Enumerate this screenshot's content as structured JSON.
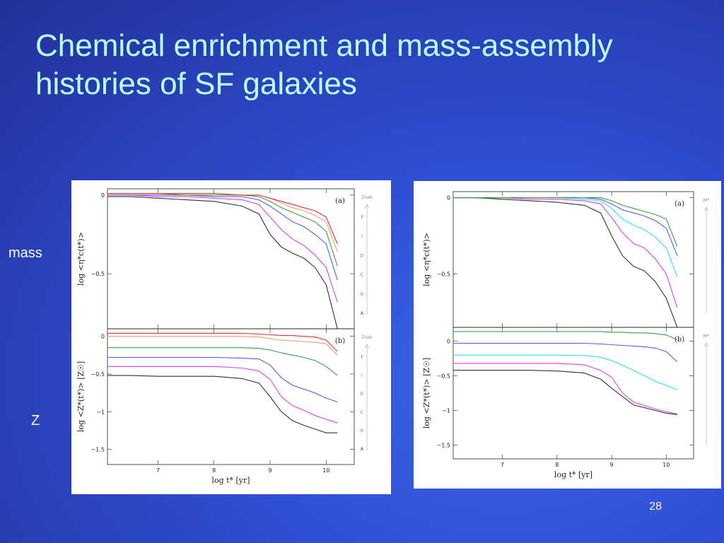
{
  "slide": {
    "title": "Chemical enrichment and mass-assembly histories of SF galaxies",
    "row_label_top": "mass",
    "row_label_bottom": "Z",
    "page_number": "28"
  },
  "chart_data": [
    {
      "type": "line",
      "panel": "left-top",
      "tag": "(a)",
      "ylabel": "log <η*c(t*)>",
      "ylim": [
        -0.85,
        0.04
      ],
      "xlim": [
        6.1,
        10.5
      ],
      "yticks": [
        0,
        -0.5
      ],
      "ytick_labels": [
        "0",
        "−0.5"
      ],
      "legend_title": "Zneb",
      "legend_labels": [
        "F",
        "E",
        "D",
        "C",
        "B",
        "A"
      ],
      "x": [
        6.1,
        6.5,
        7.0,
        7.5,
        8.0,
        8.5,
        8.8,
        9.0,
        9.2,
        9.4,
        9.6,
        9.8,
        10.0,
        10.2
      ],
      "series": [
        {
          "label": "A",
          "color": "#333333",
          "values": [
            -0.01,
            -0.01,
            -0.02,
            -0.03,
            -0.04,
            -0.07,
            -0.12,
            -0.25,
            -0.33,
            -0.37,
            -0.4,
            -0.46,
            -0.57,
            -0.85
          ]
        },
        {
          "label": "B",
          "color": "#e040e0",
          "values": [
            0.0,
            0.0,
            -0.01,
            -0.01,
            -0.02,
            -0.03,
            -0.06,
            -0.14,
            -0.22,
            -0.28,
            -0.32,
            -0.38,
            -0.46,
            -0.68
          ]
        },
        {
          "label": "C",
          "color": "#5060e0",
          "values": [
            0.0,
            0.0,
            0.0,
            0.0,
            -0.01,
            -0.01,
            -0.03,
            -0.07,
            -0.12,
            -0.17,
            -0.2,
            -0.25,
            -0.31,
            -0.54
          ]
        },
        {
          "label": "D",
          "color": "#3aa040",
          "values": [
            0.01,
            0.01,
            0.01,
            0.0,
            0.0,
            0.0,
            -0.01,
            -0.04,
            -0.08,
            -0.11,
            -0.14,
            -0.17,
            -0.23,
            -0.45
          ]
        },
        {
          "label": "E",
          "color": "#f0a070",
          "values": [
            0.01,
            0.01,
            0.01,
            0.01,
            0.01,
            0.0,
            0.0,
            -0.02,
            -0.05,
            -0.08,
            -0.1,
            -0.13,
            -0.17,
            -0.36
          ]
        },
        {
          "label": "F",
          "color": "#e83030",
          "values": [
            0.01,
            0.01,
            0.01,
            0.01,
            0.01,
            0.0,
            0.0,
            -0.02,
            -0.04,
            -0.06,
            -0.08,
            -0.1,
            -0.14,
            -0.31
          ]
        }
      ]
    },
    {
      "type": "line",
      "panel": "left-bottom",
      "tag": "(b)",
      "ylabel": "log <Z*(t*)> [Z☉]",
      "xlabel": "log t* [yr]",
      "ylim": [
        -1.7,
        0.1
      ],
      "xlim": [
        6.1,
        10.5
      ],
      "yticks": [
        0,
        -0.5,
        -1,
        -1.5
      ],
      "ytick_labels": [
        "0",
        "−0.5",
        "−1",
        "−1.5"
      ],
      "xticks": [
        7,
        8,
        9,
        10
      ],
      "xtick_labels": [
        "7",
        "8",
        "9",
        "10"
      ],
      "legend_title": "Zneb",
      "legend_labels": [
        "F",
        "E",
        "D",
        "C",
        "B",
        "A"
      ],
      "x": [
        6.1,
        6.5,
        7.0,
        7.5,
        8.0,
        8.5,
        8.8,
        9.0,
        9.2,
        9.4,
        9.6,
        9.8,
        10.0,
        10.2
      ],
      "series": [
        {
          "label": "A",
          "color": "#333333",
          "values": [
            -0.52,
            -0.52,
            -0.53,
            -0.53,
            -0.53,
            -0.56,
            -0.62,
            -0.8,
            -1.0,
            -1.12,
            -1.18,
            -1.23,
            -1.28,
            -1.28
          ]
        },
        {
          "label": "B",
          "color": "#e040e0",
          "values": [
            -0.4,
            -0.4,
            -0.4,
            -0.4,
            -0.4,
            -0.42,
            -0.46,
            -0.57,
            -0.8,
            -0.92,
            -0.98,
            -1.05,
            -1.1,
            -1.15
          ]
        },
        {
          "label": "C",
          "color": "#5060e0",
          "values": [
            -0.28,
            -0.28,
            -0.28,
            -0.28,
            -0.28,
            -0.29,
            -0.3,
            -0.38,
            -0.55,
            -0.65,
            -0.7,
            -0.75,
            -0.82,
            -0.87
          ]
        },
        {
          "label": "D",
          "color": "#3aa040",
          "values": [
            -0.15,
            -0.15,
            -0.15,
            -0.15,
            -0.15,
            -0.15,
            -0.16,
            -0.18,
            -0.22,
            -0.25,
            -0.28,
            -0.32,
            -0.4,
            -0.52
          ]
        },
        {
          "label": "E",
          "color": "#f0a070",
          "values": [
            0.0,
            0.0,
            0.0,
            0.0,
            0.0,
            0.0,
            -0.01,
            -0.03,
            -0.05,
            -0.06,
            -0.07,
            -0.08,
            -0.1,
            -0.25
          ]
        },
        {
          "label": "F",
          "color": "#e83030",
          "values": [
            0.04,
            0.04,
            0.04,
            0.04,
            0.04,
            0.04,
            0.03,
            0.02,
            0.01,
            0.01,
            0.0,
            -0.01,
            -0.05,
            -0.2
          ]
        }
      ]
    },
    {
      "type": "line",
      "panel": "right-top",
      "tag": "(a)",
      "ylabel": "log <η*c(t*)>",
      "ylim": [
        -0.85,
        0.04
      ],
      "xlim": [
        6.1,
        10.5
      ],
      "yticks": [
        0,
        -0.5
      ],
      "ytick_labels": [
        "0",
        "−0.5"
      ],
      "legend_title": "M*",
      "legend_labels": [],
      "x": [
        6.1,
        6.5,
        7.0,
        7.5,
        8.0,
        8.5,
        8.8,
        9.0,
        9.2,
        9.4,
        9.6,
        9.8,
        10.0,
        10.2
      ],
      "series": [
        {
          "color": "#333333",
          "values": [
            0.0,
            0.0,
            -0.01,
            -0.02,
            -0.03,
            -0.05,
            -0.1,
            -0.25,
            -0.38,
            -0.45,
            -0.48,
            -0.55,
            -0.66,
            -0.85
          ]
        },
        {
          "color": "#e040e0",
          "values": [
            0.0,
            0.0,
            0.0,
            -0.01,
            -0.01,
            -0.02,
            -0.04,
            -0.13,
            -0.23,
            -0.3,
            -0.33,
            -0.4,
            -0.5,
            -0.72
          ]
        },
        {
          "color": "#30e0f0",
          "values": [
            0.0,
            0.0,
            0.0,
            0.0,
            0.0,
            -0.01,
            -0.02,
            -0.07,
            -0.14,
            -0.18,
            -0.21,
            -0.26,
            -0.33,
            -0.52
          ]
        },
        {
          "color": "#5060e0",
          "values": [
            0.0,
            0.0,
            0.0,
            0.0,
            0.0,
            0.0,
            -0.01,
            -0.04,
            -0.08,
            -0.1,
            -0.12,
            -0.15,
            -0.2,
            -0.38
          ]
        },
        {
          "color": "#3aa040",
          "values": [
            0.0,
            0.0,
            0.0,
            0.0,
            0.0,
            0.0,
            0.0,
            -0.02,
            -0.05,
            -0.07,
            -0.09,
            -0.11,
            -0.14,
            -0.32
          ]
        }
      ]
    },
    {
      "type": "line",
      "panel": "right-bottom",
      "tag": "(b)",
      "ylabel": "log <Z*(t*)> [Z☉]",
      "xlabel": "log t* [yr]",
      "ylim": [
        -1.7,
        0.2
      ],
      "xlim": [
        6.1,
        10.5
      ],
      "yticks": [
        0,
        -0.5,
        -1,
        -1.5
      ],
      "ytick_labels": [
        "0",
        "−0.5",
        "−1",
        "−1.5"
      ],
      "xticks": [
        7,
        8,
        9,
        10
      ],
      "xtick_labels": [
        "7",
        "8",
        "9",
        "10"
      ],
      "legend_title": "M*",
      "legend_labels": [],
      "x": [
        6.1,
        6.5,
        7.0,
        7.5,
        8.0,
        8.5,
        8.8,
        9.0,
        9.2,
        9.4,
        9.6,
        9.8,
        10.0,
        10.2
      ],
      "series": [
        {
          "color": "#333333",
          "values": [
            -0.42,
            -0.42,
            -0.42,
            -0.42,
            -0.43,
            -0.46,
            -0.55,
            -0.68,
            -0.8,
            -0.92,
            -0.96,
            -1.0,
            -1.04,
            -1.06
          ]
        },
        {
          "color": "#e040e0",
          "values": [
            -0.32,
            -0.32,
            -0.32,
            -0.32,
            -0.32,
            -0.34,
            -0.42,
            -0.52,
            -0.75,
            -0.88,
            -0.93,
            -0.98,
            -1.02,
            -1.05
          ]
        },
        {
          "color": "#30e0f0",
          "values": [
            -0.2,
            -0.2,
            -0.2,
            -0.2,
            -0.2,
            -0.21,
            -0.23,
            -0.28,
            -0.35,
            -0.42,
            -0.5,
            -0.58,
            -0.64,
            -0.7
          ]
        },
        {
          "color": "#5060e0",
          "values": [
            -0.03,
            -0.03,
            -0.03,
            -0.03,
            -0.03,
            -0.03,
            -0.04,
            -0.05,
            -0.06,
            -0.07,
            -0.08,
            -0.1,
            -0.15,
            -0.3
          ]
        },
        {
          "color": "#3aa040",
          "values": [
            0.14,
            0.14,
            0.14,
            0.14,
            0.14,
            0.14,
            0.14,
            0.13,
            0.13,
            0.12,
            0.12,
            0.11,
            0.09,
            0.02
          ]
        }
      ]
    }
  ]
}
